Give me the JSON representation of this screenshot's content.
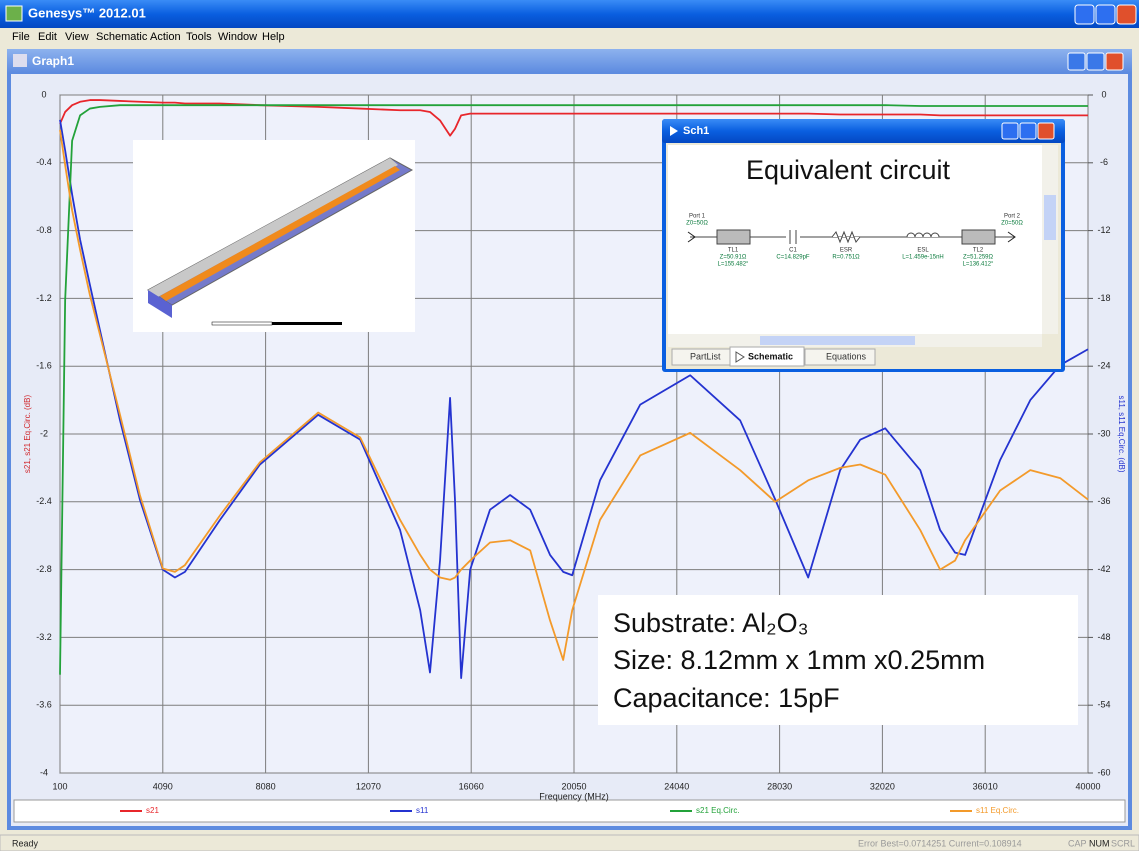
{
  "app": {
    "title": "Genesys™ 2012.01",
    "menu": [
      "File",
      "Edit",
      "View",
      "Schematic",
      "Action",
      "Tools",
      "Window",
      "Help"
    ]
  },
  "graph_window": {
    "title": "Graph1"
  },
  "chart_data": {
    "type": "line",
    "x_label": "Frequency (MHz)",
    "y_label": "s21, s21 Eq.Circ. (dB)",
    "y2_label": "s11, s11 Eq.Circ. (dB)",
    "x": [
      100,
      300,
      570,
      880,
      1260,
      1650,
      2430,
      3200,
      4090,
      4560,
      4950,
      6310,
      7860,
      10120,
      11750,
      13300,
      14080,
      14460,
      14850,
      15240,
      15430,
      15670,
      16020,
      16790,
      17570,
      18350,
      19120,
      19630,
      19980,
      21060,
      22620,
      24560,
      26500,
      27860,
      29140,
      30380,
      31160,
      32130,
      33490,
      34260,
      34840,
      35230,
      36590,
      37760,
      38920,
      40000
    ],
    "series": [
      {
        "name": "s21",
        "color": "#e8262b",
        "axis": "y",
        "values": [
          -0.17,
          -0.1,
          -0.06,
          -0.04,
          -0.03,
          -0.03,
          -0.035,
          -0.04,
          -0.045,
          -0.045,
          -0.05,
          -0.05,
          -0.06,
          -0.07,
          -0.08,
          -0.09,
          -0.09,
          -0.1,
          -0.15,
          -0.24,
          -0.2,
          -0.12,
          -0.11,
          -0.11,
          -0.11,
          -0.11,
          -0.11,
          -0.11,
          -0.11,
          -0.11,
          -0.11,
          -0.11,
          -0.11,
          -0.11,
          -0.11,
          -0.115,
          -0.115,
          -0.115,
          -0.115,
          -0.12,
          -0.12,
          -0.12,
          -0.12,
          -0.12,
          -0.12,
          -0.12
        ]
      },
      {
        "name": "s11",
        "color": "#2433d0",
        "axis": "y2",
        "values": [
          -2.2,
          -4.9,
          -8.8,
          -12.8,
          -16.8,
          -20.8,
          -28.8,
          -35.8,
          -42.0,
          -42.7,
          -42.2,
          -37.6,
          -32.7,
          -28.3,
          -30.5,
          -38.5,
          -45.6,
          -51.1,
          -41.2,
          -26.8,
          -35.8,
          -51.6,
          -42.0,
          -36.7,
          -35.4,
          -36.7,
          -40.7,
          -42.2,
          -42.5,
          -34.1,
          -27.4,
          -24.8,
          -28.8,
          -35.8,
          -42.7,
          -33.2,
          -30.5,
          -29.5,
          -33.2,
          -38.5,
          -40.5,
          -40.7,
          -32.3,
          -27.0,
          -23.9,
          -22.5
        ]
      },
      {
        "name": "s21 Eq.Circ.",
        "color": "#23a23a",
        "axis": "y",
        "values": [
          -3.42,
          -1.21,
          -0.27,
          -0.12,
          -0.08,
          -0.07,
          -0.06,
          -0.06,
          -0.06,
          -0.06,
          -0.06,
          -0.06,
          -0.06,
          -0.06,
          -0.06,
          -0.06,
          -0.06,
          -0.06,
          -0.06,
          -0.06,
          -0.06,
          -0.06,
          -0.06,
          -0.06,
          -0.06,
          -0.06,
          -0.06,
          -0.06,
          -0.06,
          -0.06,
          -0.06,
          -0.06,
          -0.06,
          -0.06,
          -0.06,
          -0.06,
          -0.06,
          -0.06,
          -0.065,
          -0.065,
          -0.065,
          -0.065,
          -0.065,
          -0.065,
          -0.065,
          -0.065
        ]
      },
      {
        "name": "s11 Eq.Circ.",
        "color": "#f39a2a",
        "axis": "y2",
        "values": [
          -3.1,
          -6.2,
          -10.2,
          -13.7,
          -17.7,
          -21.2,
          -28.3,
          -35.4,
          -41.9,
          -42.2,
          -41.6,
          -37.2,
          -32.5,
          -28.1,
          -30.3,
          -37.6,
          -40.7,
          -42.0,
          -42.7,
          -42.9,
          -42.7,
          -42.0,
          -41.2,
          -39.6,
          -39.4,
          -40.3,
          -46.5,
          -50.0,
          -45.6,
          -37.6,
          -31.9,
          -29.9,
          -33.2,
          -36.0,
          -34.1,
          -33.0,
          -32.7,
          -33.6,
          -38.5,
          -42.0,
          -41.2,
          -39.4,
          -35.0,
          -33.2,
          -33.9,
          -35.8
        ]
      }
    ],
    "xlim": [
      100,
      40000
    ],
    "xticks": [
      100,
      4090,
      8080,
      12070,
      16060,
      20050,
      24040,
      28030,
      32020,
      36010,
      40000
    ],
    "ylim": [
      -4,
      0
    ],
    "yticks": [
      0,
      -0.4,
      -0.8,
      -1.2,
      -1.6,
      -2,
      -2.4,
      -2.8,
      -3.2,
      -3.6,
      -4
    ],
    "y2lim": [
      -60,
      0
    ],
    "y2ticks": [
      0,
      -6,
      -12,
      -18,
      -24,
      -30,
      -36,
      -42,
      -48,
      -54,
      -60
    ],
    "grid": true,
    "legend": "bottom"
  },
  "schematic_window": {
    "title": "Sch1",
    "heading": "Equivalent circuit",
    "components": [
      {
        "name": "Port 1",
        "params": [
          "Z0=50Ω"
        ]
      },
      {
        "name": "TL1",
        "params": [
          "Z=50.91Ω",
          "L=155.482°"
        ]
      },
      {
        "name": "C1",
        "params": [
          "C=14.829pF"
        ]
      },
      {
        "name": "ESR",
        "params": [
          "R=0.751Ω"
        ]
      },
      {
        "name": "ESL",
        "params": [
          "L=1.459e-15nH"
        ]
      },
      {
        "name": "TL2",
        "params": [
          "Z=51.259Ω",
          "L=136.412°"
        ]
      },
      {
        "name": "Port 2",
        "params": [
          "Z0=50Ω"
        ]
      }
    ],
    "tabs": [
      "PartList",
      "Schematic",
      "Equations"
    ]
  },
  "annotation": {
    "lines": [
      "Substrate: Al₂O₃",
      "Size: 8.12mm x 1mm x0.25mm",
      "Capacitance: 15pF"
    ]
  },
  "status_bar": {
    "message": "Ready",
    "error": "Error Best=0.0714251 Current=0.108914",
    "indicators": [
      "CAP",
      "NUM",
      "SCRL"
    ]
  }
}
